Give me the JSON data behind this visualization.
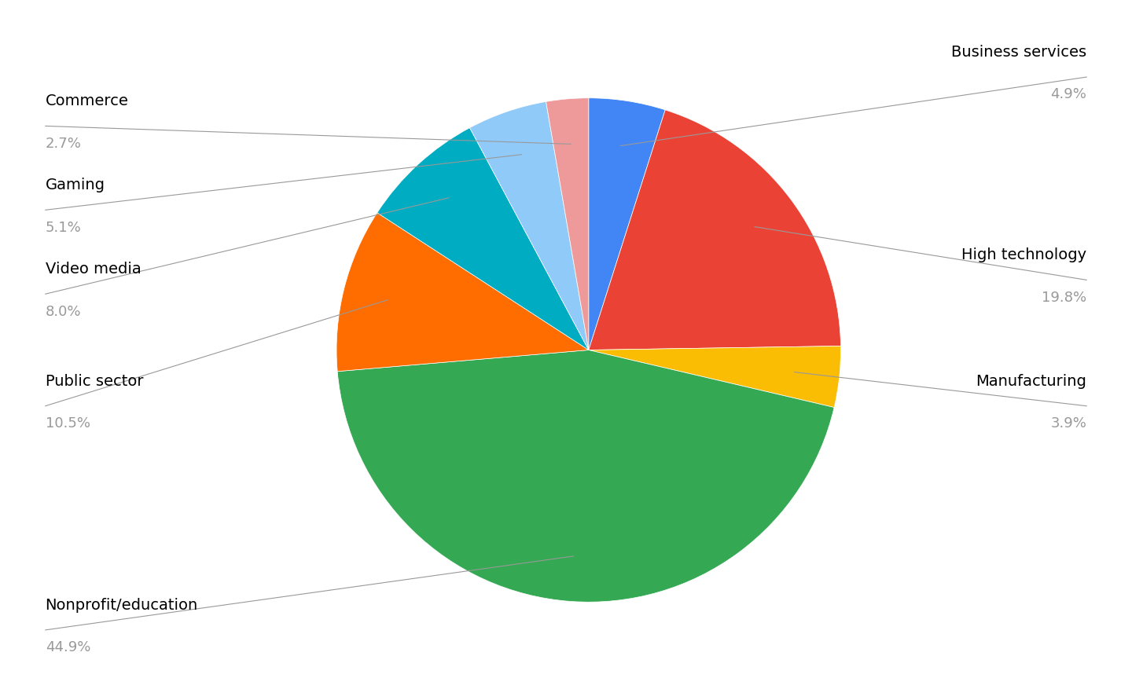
{
  "plot_order": [
    "Business services",
    "High technology",
    "Manufacturing",
    "Nonprofit/education",
    "Public sector",
    "Video media",
    "Gaming",
    "Commerce"
  ],
  "values": [
    4.9,
    19.8,
    3.9,
    44.9,
    10.5,
    8.0,
    5.1,
    2.7
  ],
  "colors": [
    "#4285f4",
    "#ea4335",
    "#fbbc04",
    "#34a853",
    "#ff6d00",
    "#00acc1",
    "#90caf9",
    "#ef9a9a"
  ],
  "pcts": [
    "4.9%",
    "19.8%",
    "3.9%",
    "44.9%",
    "10.5%",
    "8.0%",
    "5.1%",
    "2.7%"
  ],
  "background_color": "#ffffff",
  "label_fontsize": 14,
  "pct_fontsize": 13
}
